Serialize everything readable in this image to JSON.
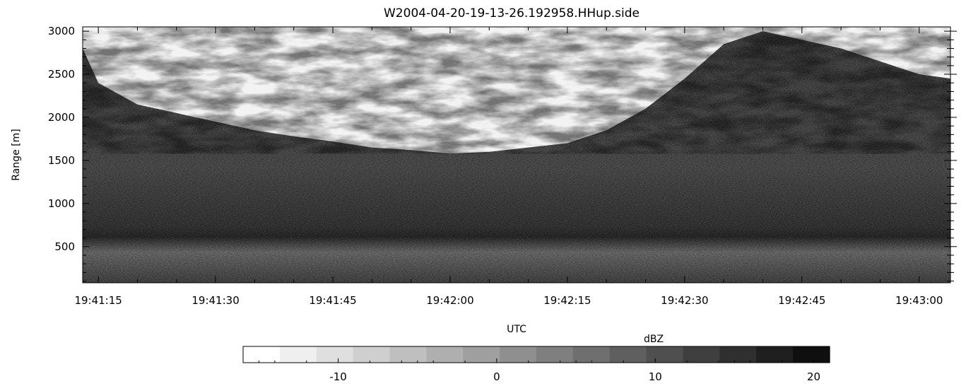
{
  "chart_data": [
    {
      "type": "heatmap",
      "title": "W2004-04-20-19-13-26.192958.HHup.side",
      "xlabel": "UTC",
      "ylabel": "Range [m]",
      "x_ticks": [
        "19:41:15",
        "19:41:30",
        "19:41:45",
        "19:42:00",
        "19:42:15",
        "19:42:30",
        "19:42:45",
        "19:43:00"
      ],
      "x_range": [
        "19:41:13",
        "19:43:04"
      ],
      "y_ticks": [
        500,
        1000,
        1500,
        2000,
        2500,
        3000
      ],
      "y_range": [
        80,
        3050
      ],
      "colormap": "grayscale",
      "grid": false,
      "boundary_profile": {
        "description_units": "Range [m] of echo top across time",
        "times": [
          "19:41:13",
          "19:41:15",
          "19:41:20",
          "19:41:25",
          "19:41:30",
          "19:41:35",
          "19:41:40",
          "19:41:45",
          "19:41:50",
          "19:41:55",
          "19:42:00",
          "19:42:05",
          "19:42:10",
          "19:42:15",
          "19:42:20",
          "19:42:25",
          "19:42:30",
          "19:42:35",
          "19:42:40",
          "19:42:45",
          "19:42:50",
          "19:42:55",
          "19:43:00",
          "19:43:04"
        ],
        "echo_top_m": [
          2800,
          2400,
          2150,
          2050,
          1950,
          1850,
          1780,
          1720,
          1650,
          1620,
          1580,
          1600,
          1650,
          1700,
          1850,
          2100,
          2450,
          2850,
          3000,
          2900,
          2800,
          2650,
          2500,
          2450
        ]
      }
    },
    {
      "type": "heatmap",
      "role": "colorbar",
      "title": "dBZ",
      "ticks": [
        -10,
        0,
        10,
        20
      ],
      "range": [
        -16,
        21
      ],
      "levels": 16,
      "colors": [
        "#ffffff",
        "#efefef",
        "#dfdfdf",
        "#cfcfcf",
        "#bfbfbf",
        "#afafaf",
        "#9f9f9f",
        "#8f8f8f",
        "#7f7f7f",
        "#6f6f6f",
        "#5f5f5f",
        "#4f4f4f",
        "#3f3f3f",
        "#2f2f2f",
        "#1f1f1f",
        "#0f0f0f"
      ]
    }
  ]
}
